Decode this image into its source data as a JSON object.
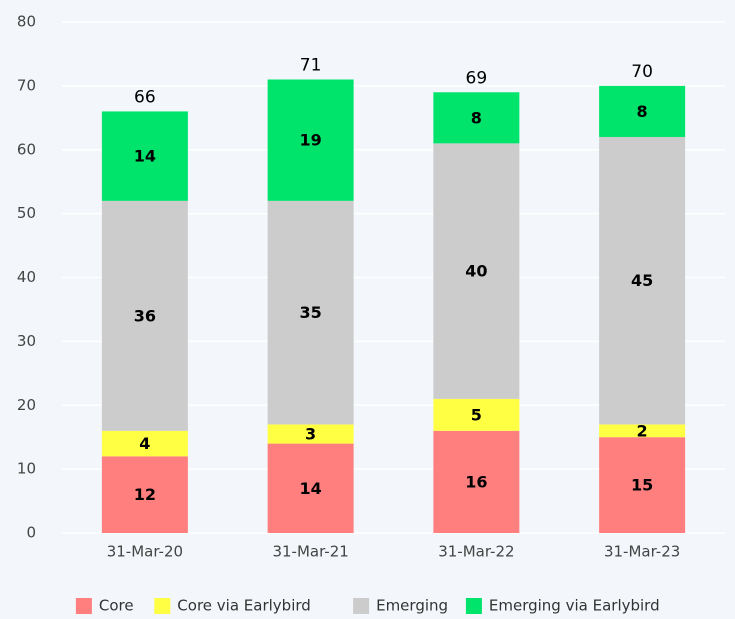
{
  "chart_data": {
    "type": "stacked_bar",
    "categories": [
      "31-Mar-20",
      "31-Mar-21",
      "31-Mar-22",
      "31-Mar-23"
    ],
    "series": [
      {
        "name": "Core",
        "color": "#ff7f7f",
        "values": [
          12,
          14,
          16,
          15
        ]
      },
      {
        "name": "Core via Earlybird",
        "color": "#ffff44",
        "values": [
          4,
          3,
          5,
          2
        ]
      },
      {
        "name": "Emerging",
        "color": "#cccccc",
        "values": [
          36,
          35,
          40,
          45
        ]
      },
      {
        "name": "Emerging via Earlybird",
        "color": "#00e46c",
        "values": [
          14,
          19,
          8,
          8
        ]
      }
    ],
    "totals": [
      66,
      71,
      69,
      70
    ],
    "ylim": [
      0,
      80
    ],
    "yticks": [
      0,
      10,
      20,
      30,
      40,
      50,
      60,
      70,
      80
    ],
    "grid": true,
    "legend": "bottom"
  }
}
